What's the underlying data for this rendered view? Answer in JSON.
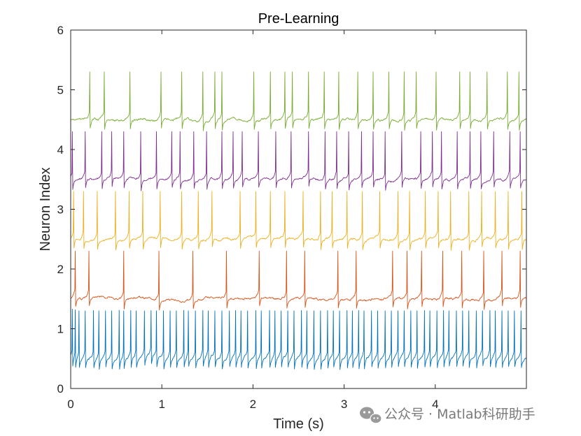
{
  "chart_data": {
    "type": "line",
    "title": "Pre-Learning",
    "xlabel": "Time (s)",
    "ylabel": "Neuron Index",
    "xlim": [
      0,
      5
    ],
    "ylim": [
      0,
      6
    ],
    "xticks": [
      0,
      1,
      2,
      3,
      4
    ],
    "yticks": [
      0,
      1,
      2,
      3,
      4,
      5,
      6
    ],
    "grid": false,
    "baseline_amplitude": 0.04,
    "spike_peak_offset": 0.8,
    "spike_trough_offset": -0.15,
    "series": [
      {
        "baseline": 0.5,
        "color": "#0072BD",
        "spike_times": [
          0.02,
          0.05,
          0.09,
          0.16,
          0.25,
          0.31,
          0.38,
          0.45,
          0.53,
          0.58,
          0.66,
          0.72,
          0.81,
          0.88,
          0.94,
          1.02,
          1.09,
          1.16,
          1.24,
          1.29,
          1.37,
          1.45,
          1.51,
          1.58,
          1.66,
          1.74,
          1.81,
          1.87,
          1.94,
          2.03,
          2.09,
          2.18,
          2.24,
          2.31,
          2.38,
          2.45,
          2.53,
          2.59,
          2.67,
          2.74,
          2.82,
          2.88,
          2.95,
          3.03,
          3.09,
          3.16,
          3.22,
          3.3,
          3.37,
          3.45,
          3.52,
          3.59,
          3.66,
          3.73,
          3.8,
          3.88,
          3.94,
          4.02,
          4.09,
          4.15,
          4.23,
          4.3,
          4.37,
          4.45,
          4.52,
          4.6,
          4.66,
          4.73,
          4.8,
          4.87,
          4.94
        ]
      },
      {
        "baseline": 1.5,
        "color": "#D95319",
        "spike_times": [
          0.05,
          0.2,
          0.58,
          0.97,
          1.34,
          1.71,
          2.07,
          2.37,
          2.57,
          2.93,
          3.13,
          3.53,
          3.69,
          3.85,
          4.08,
          4.29,
          4.53,
          4.73,
          4.93
        ]
      },
      {
        "baseline": 2.5,
        "color": "#EDB120",
        "spike_times": [
          0.03,
          0.14,
          0.29,
          0.49,
          0.64,
          0.79,
          0.98,
          1.22,
          1.4,
          1.55,
          1.86,
          2.03,
          2.19,
          2.35,
          2.55,
          2.74,
          2.87,
          3.03,
          3.2,
          3.39,
          3.59,
          3.72,
          3.89,
          4.03,
          4.17,
          4.37,
          4.51,
          4.66,
          4.8,
          4.95
        ]
      },
      {
        "baseline": 3.5,
        "color": "#7E2F8E",
        "spike_times": [
          0.02,
          0.16,
          0.34,
          0.45,
          0.58,
          0.77,
          0.94,
          1.11,
          1.2,
          1.35,
          1.49,
          1.66,
          1.78,
          1.88,
          2.06,
          2.25,
          2.42,
          2.61,
          2.79,
          2.92,
          3.05,
          3.19,
          3.32,
          3.45,
          3.63,
          3.84,
          3.97,
          4.07,
          4.24,
          4.38,
          4.5,
          4.64,
          4.82,
          4.93
        ]
      },
      {
        "baseline": 4.5,
        "color": "#77AC30",
        "spike_times": [
          0.21,
          0.37,
          0.65,
          0.99,
          1.22,
          1.45,
          1.58,
          1.66,
          2.01,
          2.19,
          2.35,
          2.43,
          2.61,
          2.78,
          2.94,
          3.15,
          3.32,
          3.49,
          3.66,
          3.79,
          4.01,
          4.27,
          4.38,
          4.57,
          4.79,
          4.92
        ]
      }
    ]
  },
  "watermark": {
    "icon": "wechat-icon",
    "text": "公众号 · Matlab科研助手"
  }
}
